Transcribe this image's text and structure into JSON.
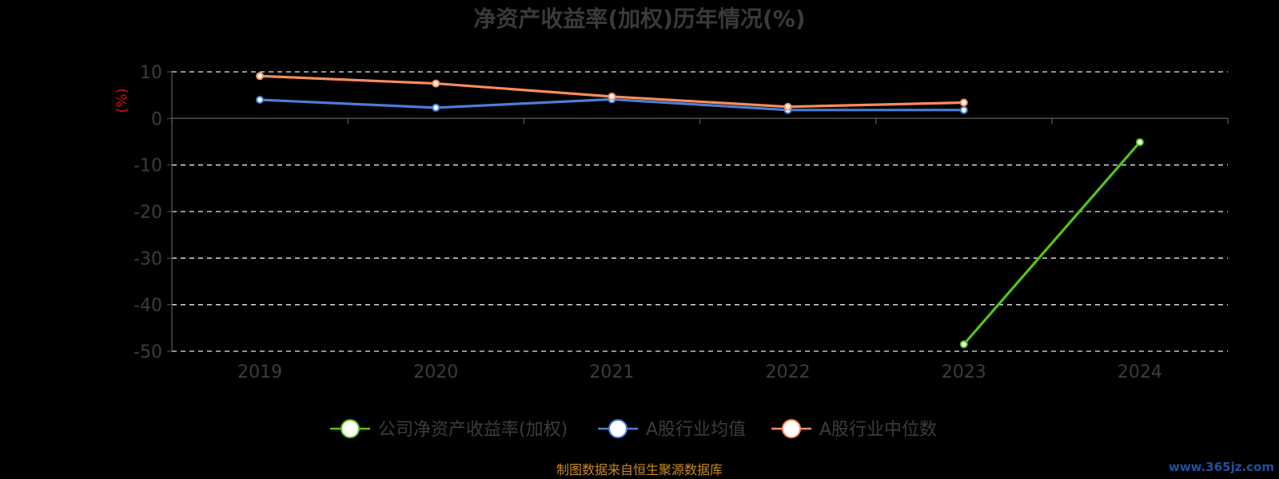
{
  "chart_data": {
    "type": "line",
    "title": "净资产收益率(加权)历年情况(%)",
    "ylabel": "(%)",
    "categories": [
      "2019",
      "2020",
      "2021",
      "2022",
      "2023",
      "2024"
    ],
    "ylim": [
      -50,
      10
    ],
    "yticks": [
      10,
      0,
      -10,
      -20,
      -30,
      -40,
      -50
    ],
    "grid": true,
    "legend_position": "bottom-center",
    "series": [
      {
        "name": "公司净资产收益率(加权)",
        "color": "#52c41a",
        "values": [
          null,
          null,
          null,
          null,
          -48.5,
          -5.1
        ]
      },
      {
        "name": "A股行业均值",
        "color": "#4a7fd8",
        "values": [
          4.0,
          2.3,
          4.1,
          1.8,
          1.8,
          null
        ]
      },
      {
        "name": "A股行业中位数",
        "color": "#ff8c5a",
        "values": [
          9.1,
          7.5,
          4.7,
          2.5,
          3.4,
          null
        ]
      }
    ]
  },
  "footer": {
    "source": "制图数据来自恒生聚源数据库",
    "watermark": "www.365jz.com"
  }
}
